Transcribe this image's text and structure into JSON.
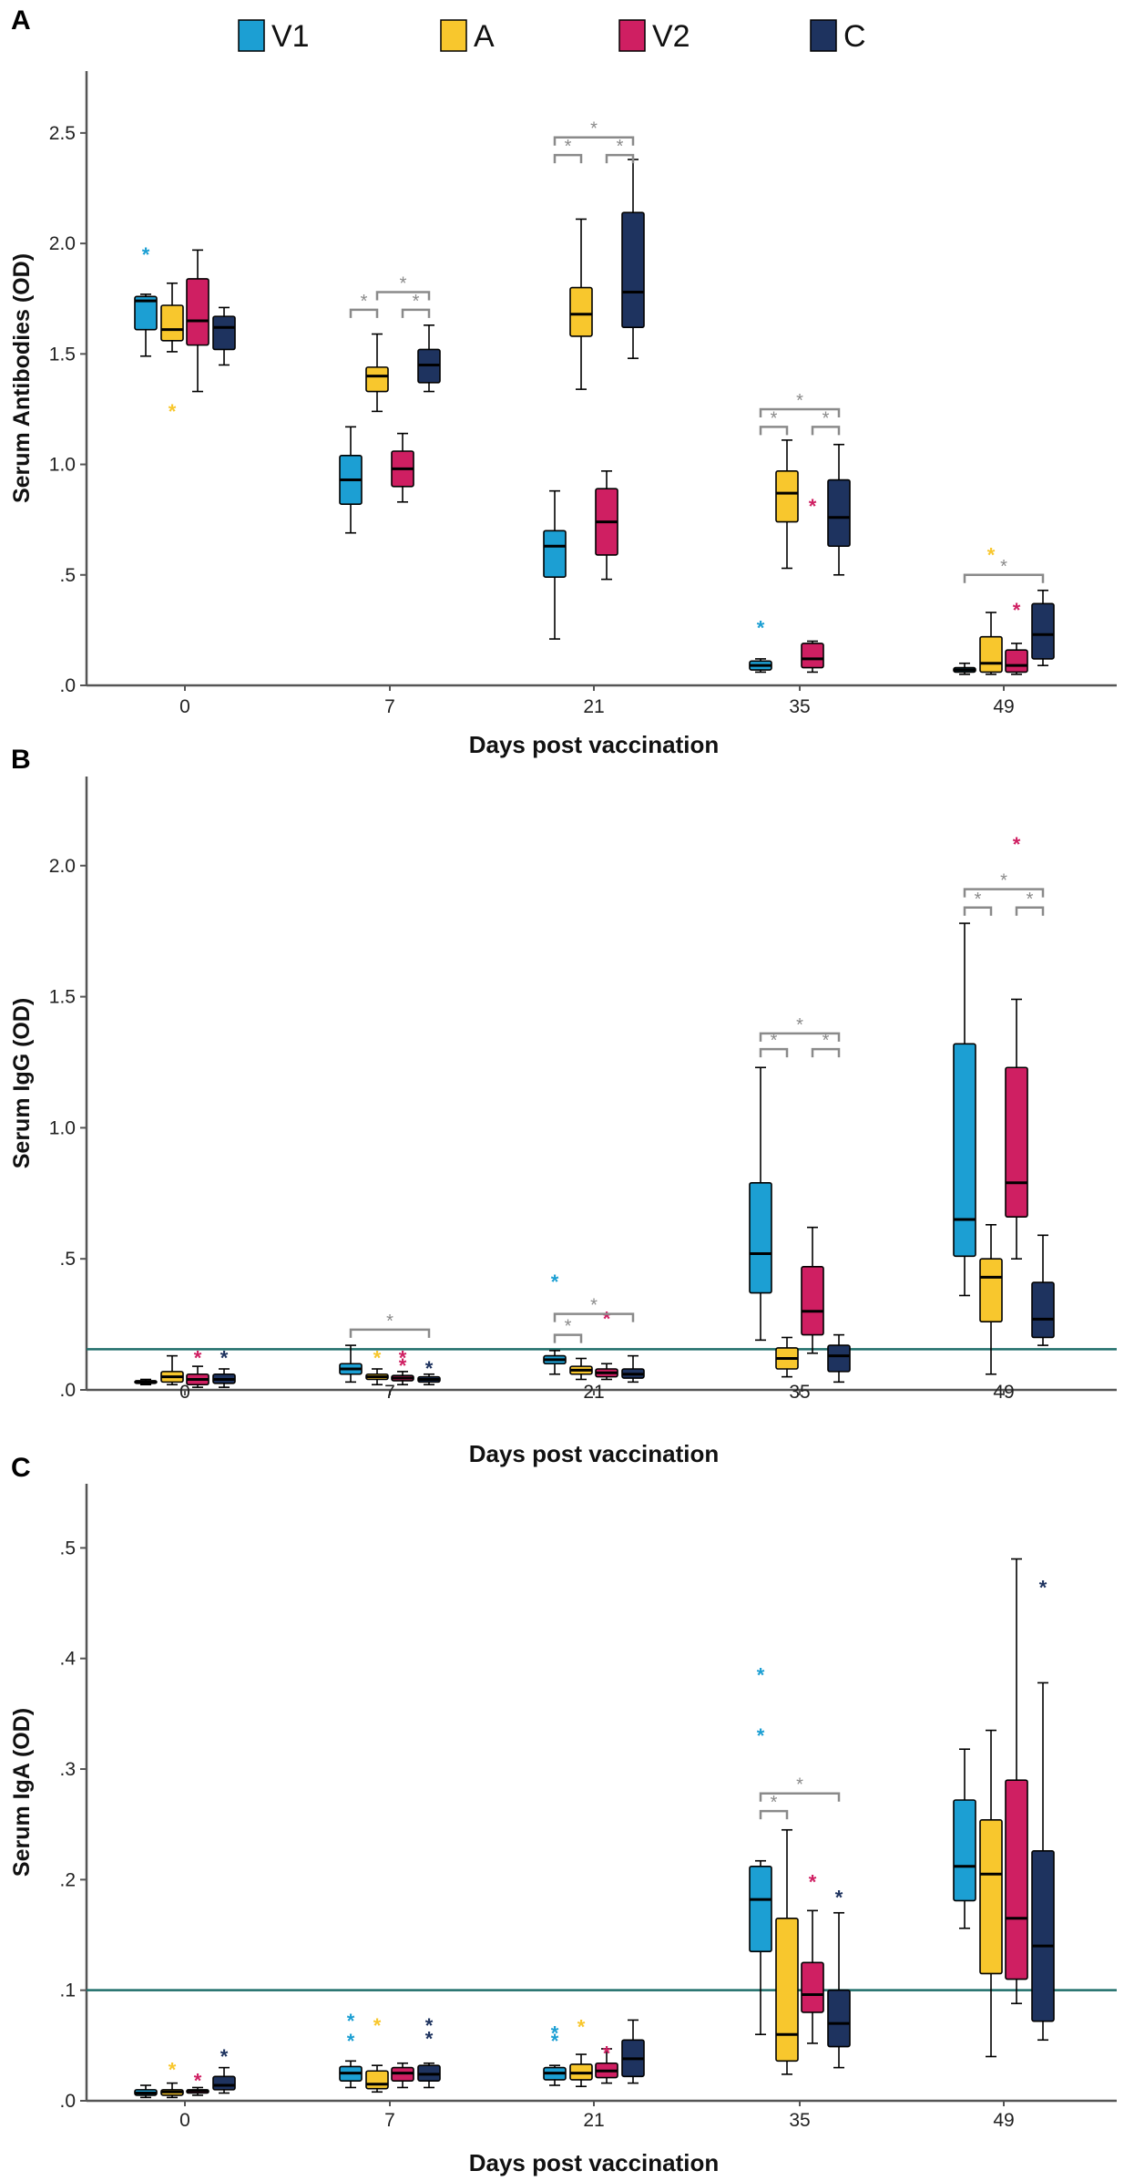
{
  "legend": [
    {
      "key": "V1",
      "color": "#1c9fd3"
    },
    {
      "key": "A",
      "color": "#f8c72d"
    },
    {
      "key": "V2",
      "color": "#cf1f62"
    },
    {
      "key": "C",
      "color": "#1e335f"
    }
  ],
  "chart_data": [
    {
      "type": "box",
      "panel": "A",
      "ylabel": "Serum Antibodies (OD)",
      "xlabel": "Days post vaccination",
      "ylim": [
        0,
        2.78
      ],
      "yticks": [
        {
          "v": 0,
          "label": ".0"
        },
        {
          "v": 0.5,
          "label": ".5"
        },
        {
          "v": 1.0,
          "label": "1.0"
        },
        {
          "v": 1.5,
          "label": "1.5"
        },
        {
          "v": 2.0,
          "label": "2.0"
        },
        {
          "v": 2.5,
          "label": "2.5"
        }
      ],
      "categories": [
        "0",
        "7",
        "21",
        "35",
        "49"
      ],
      "boxes": [
        {
          "day": "0",
          "group": "V1",
          "min": 1.49,
          "q1": 1.61,
          "median": 1.74,
          "q3": 1.76,
          "max": 1.77
        },
        {
          "day": "0",
          "group": "A",
          "min": 1.51,
          "q1": 1.56,
          "median": 1.61,
          "q3": 1.72,
          "max": 1.82
        },
        {
          "day": "0",
          "group": "V2",
          "min": 1.33,
          "q1": 1.54,
          "median": 1.65,
          "q3": 1.84,
          "max": 1.97
        },
        {
          "day": "0",
          "group": "C",
          "min": 1.45,
          "q1": 1.52,
          "median": 1.62,
          "q3": 1.67,
          "max": 1.71
        },
        {
          "day": "7",
          "group": "V1",
          "min": 0.69,
          "q1": 0.82,
          "median": 0.93,
          "q3": 1.04,
          "max": 1.17
        },
        {
          "day": "7",
          "group": "A",
          "min": 1.24,
          "q1": 1.33,
          "median": 1.4,
          "q3": 1.44,
          "max": 1.59
        },
        {
          "day": "7",
          "group": "V2",
          "min": 0.83,
          "q1": 0.9,
          "median": 0.98,
          "q3": 1.06,
          "max": 1.14
        },
        {
          "day": "7",
          "group": "C",
          "min": 1.33,
          "q1": 1.37,
          "median": 1.45,
          "q3": 1.52,
          "max": 1.63
        },
        {
          "day": "21",
          "group": "V1",
          "min": 0.21,
          "q1": 0.49,
          "median": 0.63,
          "q3": 0.7,
          "max": 0.88
        },
        {
          "day": "21",
          "group": "A",
          "min": 1.34,
          "q1": 1.58,
          "median": 1.68,
          "q3": 1.8,
          "max": 2.11
        },
        {
          "day": "21",
          "group": "V2",
          "min": 0.48,
          "q1": 0.59,
          "median": 0.74,
          "q3": 0.89,
          "max": 0.97
        },
        {
          "day": "21",
          "group": "C",
          "min": 1.48,
          "q1": 1.62,
          "median": 1.78,
          "q3": 2.14,
          "max": 2.38
        },
        {
          "day": "35",
          "group": "V1",
          "min": 0.06,
          "q1": 0.07,
          "median": 0.09,
          "q3": 0.11,
          "max": 0.12
        },
        {
          "day": "35",
          "group": "A",
          "min": 0.53,
          "q1": 0.74,
          "median": 0.87,
          "q3": 0.97,
          "max": 1.11
        },
        {
          "day": "35",
          "group": "V2",
          "min": 0.06,
          "q1": 0.08,
          "median": 0.12,
          "q3": 0.19,
          "max": 0.2
        },
        {
          "day": "35",
          "group": "C",
          "min": 0.5,
          "q1": 0.63,
          "median": 0.76,
          "q3": 0.93,
          "max": 1.09
        },
        {
          "day": "49",
          "group": "V1",
          "min": 0.05,
          "q1": 0.06,
          "median": 0.07,
          "q3": 0.08,
          "max": 0.1
        },
        {
          "day": "49",
          "group": "A",
          "min": 0.05,
          "q1": 0.06,
          "median": 0.1,
          "q3": 0.22,
          "max": 0.33
        },
        {
          "day": "49",
          "group": "V2",
          "min": 0.05,
          "q1": 0.06,
          "median": 0.09,
          "q3": 0.16,
          "max": 0.19
        },
        {
          "day": "49",
          "group": "C",
          "min": 0.09,
          "q1": 0.12,
          "median": 0.23,
          "q3": 0.37,
          "max": 0.43
        }
      ],
      "outliers": [
        {
          "day": "0",
          "group": "V1",
          "v": 1.96
        },
        {
          "day": "0",
          "group": "A",
          "v": 1.25
        },
        {
          "day": "35",
          "group": "V1",
          "v": 0.27
        },
        {
          "day": "35",
          "group": "V2",
          "v": 0.82
        },
        {
          "day": "49",
          "group": "A",
          "v": 0.6
        },
        {
          "day": "49",
          "group": "V2",
          "v": 0.35
        }
      ],
      "significance": [
        {
          "day": "7",
          "from": "A",
          "to": "C",
          "y": 1.78
        },
        {
          "day": "7",
          "from": "V1",
          "to": "A",
          "y": 1.7
        },
        {
          "day": "7",
          "from": "V2",
          "to": "C",
          "y": 1.7
        },
        {
          "day": "21",
          "from": "V1",
          "to": "C",
          "y": 2.48
        },
        {
          "day": "21",
          "from": "V1",
          "to": "A",
          "y": 2.4
        },
        {
          "day": "21",
          "from": "V2",
          "to": "C",
          "y": 2.4
        },
        {
          "day": "35",
          "from": "V1",
          "to": "C",
          "y": 1.25
        },
        {
          "day": "35",
          "from": "V1",
          "to": "A",
          "y": 1.17
        },
        {
          "day": "35",
          "from": "V2",
          "to": "C",
          "y": 1.17
        },
        {
          "day": "49",
          "from": "V1",
          "to": "C",
          "y": 0.5
        }
      ],
      "threshold": null
    },
    {
      "type": "box",
      "panel": "B",
      "ylabel": "Serum IgG (OD)",
      "xlabel": "Days post vaccination",
      "ylim": [
        0,
        2.34
      ],
      "yticks": [
        {
          "v": 0,
          "label": ".0"
        },
        {
          "v": 0.5,
          "label": ".5"
        },
        {
          "v": 1.0,
          "label": "1.0"
        },
        {
          "v": 1.5,
          "label": "1.5"
        },
        {
          "v": 2.0,
          "label": "2.0"
        }
      ],
      "categories": [
        "0",
        "7",
        "21",
        "35",
        "49"
      ],
      "boxes": [
        {
          "day": "0",
          "group": "V1",
          "min": 0.02,
          "q1": 0.025,
          "median": 0.03,
          "q3": 0.035,
          "max": 0.04
        },
        {
          "day": "0",
          "group": "A",
          "min": 0.02,
          "q1": 0.03,
          "median": 0.05,
          "q3": 0.07,
          "max": 0.13
        },
        {
          "day": "0",
          "group": "V2",
          "min": 0.01,
          "q1": 0.02,
          "median": 0.04,
          "q3": 0.06,
          "max": 0.09
        },
        {
          "day": "0",
          "group": "C",
          "min": 0.01,
          "q1": 0.025,
          "median": 0.04,
          "q3": 0.06,
          "max": 0.08
        },
        {
          "day": "7",
          "group": "V1",
          "min": 0.03,
          "q1": 0.06,
          "median": 0.08,
          "q3": 0.1,
          "max": 0.17
        },
        {
          "day": "7",
          "group": "A",
          "min": 0.02,
          "q1": 0.04,
          "median": 0.05,
          "q3": 0.06,
          "max": 0.08
        },
        {
          "day": "7",
          "group": "V2",
          "min": 0.02,
          "q1": 0.035,
          "median": 0.045,
          "q3": 0.055,
          "max": 0.07
        },
        {
          "day": "7",
          "group": "C",
          "min": 0.02,
          "q1": 0.03,
          "median": 0.04,
          "q3": 0.05,
          "max": 0.06
        },
        {
          "day": "21",
          "group": "V1",
          "min": 0.06,
          "q1": 0.1,
          "median": 0.115,
          "q3": 0.13,
          "max": 0.15
        },
        {
          "day": "21",
          "group": "A",
          "min": 0.04,
          "q1": 0.06,
          "median": 0.075,
          "q3": 0.09,
          "max": 0.12
        },
        {
          "day": "21",
          "group": "V2",
          "min": 0.04,
          "q1": 0.05,
          "median": 0.065,
          "q3": 0.08,
          "max": 0.1
        },
        {
          "day": "21",
          "group": "C",
          "min": 0.03,
          "q1": 0.045,
          "median": 0.06,
          "q3": 0.08,
          "max": 0.13
        },
        {
          "day": "35",
          "group": "V1",
          "min": 0.19,
          "q1": 0.37,
          "median": 0.52,
          "q3": 0.79,
          "max": 1.23
        },
        {
          "day": "35",
          "group": "A",
          "min": 0.05,
          "q1": 0.08,
          "median": 0.12,
          "q3": 0.16,
          "max": 0.2
        },
        {
          "day": "35",
          "group": "V2",
          "min": 0.14,
          "q1": 0.21,
          "median": 0.3,
          "q3": 0.47,
          "max": 0.62
        },
        {
          "day": "35",
          "group": "C",
          "min": 0.03,
          "q1": 0.07,
          "median": 0.13,
          "q3": 0.17,
          "max": 0.21
        },
        {
          "day": "49",
          "group": "V1",
          "min": 0.36,
          "q1": 0.51,
          "median": 0.65,
          "q3": 1.32,
          "max": 1.78
        },
        {
          "day": "49",
          "group": "A",
          "min": 0.06,
          "q1": 0.26,
          "median": 0.43,
          "q3": 0.5,
          "max": 0.63
        },
        {
          "day": "49",
          "group": "V2",
          "min": 0.5,
          "q1": 0.66,
          "median": 0.79,
          "q3": 1.23,
          "max": 1.49
        },
        {
          "day": "49",
          "group": "C",
          "min": 0.17,
          "q1": 0.2,
          "median": 0.27,
          "q3": 0.41,
          "max": 0.59
        }
      ],
      "outliers": [
        {
          "day": "0",
          "group": "V2",
          "v": 0.13
        },
        {
          "day": "0",
          "group": "C",
          "v": 0.13
        },
        {
          "day": "7",
          "group": "A",
          "v": 0.13
        },
        {
          "day": "7",
          "group": "V2",
          "v": 0.13
        },
        {
          "day": "7",
          "group": "V2",
          "v": 0.1
        },
        {
          "day": "7",
          "group": "C",
          "v": 0.09
        },
        {
          "day": "21",
          "group": "V1",
          "v": 0.42
        },
        {
          "day": "21",
          "group": "V2",
          "v": 0.28
        },
        {
          "day": "49",
          "group": "V2",
          "v": 2.09
        }
      ],
      "significance": [
        {
          "day": "7",
          "from": "V1",
          "to": "C",
          "y": 0.23
        },
        {
          "day": "21",
          "from": "V1",
          "to": "C",
          "y": 0.29
        },
        {
          "day": "21",
          "from": "V1",
          "to": "A",
          "y": 0.21
        },
        {
          "day": "35",
          "from": "V1",
          "to": "C",
          "y": 1.36
        },
        {
          "day": "35",
          "from": "V1",
          "to": "A",
          "y": 1.3
        },
        {
          "day": "35",
          "from": "V2",
          "to": "C",
          "y": 1.3
        },
        {
          "day": "49",
          "from": "V1",
          "to": "C",
          "y": 1.91
        },
        {
          "day": "49",
          "from": "V1",
          "to": "A",
          "y": 1.84
        },
        {
          "day": "49",
          "from": "V2",
          "to": "C",
          "y": 1.84
        }
      ],
      "threshold": 0.155
    },
    {
      "type": "box",
      "panel": "C",
      "ylabel": "Serum IgA (OD)",
      "xlabel": "Days post vaccination",
      "ylim": [
        0,
        0.558
      ],
      "yticks": [
        {
          "v": 0,
          "label": ".0"
        },
        {
          "v": 0.1,
          "label": ".1"
        },
        {
          "v": 0.2,
          "label": ".2"
        },
        {
          "v": 0.3,
          "label": ".3"
        },
        {
          "v": 0.4,
          "label": ".4"
        },
        {
          "v": 0.5,
          "label": ".5"
        }
      ],
      "categories": [
        "0",
        "7",
        "21",
        "35",
        "49"
      ],
      "boxes": [
        {
          "day": "0",
          "group": "V1",
          "min": 0.003,
          "q1": 0.005,
          "median": 0.007,
          "q3": 0.01,
          "max": 0.014
        },
        {
          "day": "0",
          "group": "A",
          "min": 0.003,
          "q1": 0.005,
          "median": 0.008,
          "q3": 0.01,
          "max": 0.016
        },
        {
          "day": "0",
          "group": "V2",
          "min": 0.005,
          "q1": 0.007,
          "median": 0.009,
          "q3": 0.01,
          "max": 0.012
        },
        {
          "day": "0",
          "group": "C",
          "min": 0.007,
          "q1": 0.01,
          "median": 0.014,
          "q3": 0.022,
          "max": 0.03
        },
        {
          "day": "7",
          "group": "V1",
          "min": 0.012,
          "q1": 0.018,
          "median": 0.025,
          "q3": 0.031,
          "max": 0.036
        },
        {
          "day": "7",
          "group": "A",
          "min": 0.008,
          "q1": 0.011,
          "median": 0.015,
          "q3": 0.027,
          "max": 0.032
        },
        {
          "day": "7",
          "group": "V2",
          "min": 0.012,
          "q1": 0.018,
          "median": 0.025,
          "q3": 0.03,
          "max": 0.034
        },
        {
          "day": "7",
          "group": "C",
          "min": 0.012,
          "q1": 0.018,
          "median": 0.024,
          "q3": 0.032,
          "max": 0.034
        },
        {
          "day": "21",
          "group": "V1",
          "min": 0.014,
          "q1": 0.019,
          "median": 0.025,
          "q3": 0.03,
          "max": 0.032
        },
        {
          "day": "21",
          "group": "A",
          "min": 0.013,
          "q1": 0.019,
          "median": 0.025,
          "q3": 0.033,
          "max": 0.042
        },
        {
          "day": "21",
          "group": "V2",
          "min": 0.016,
          "q1": 0.021,
          "median": 0.027,
          "q3": 0.034,
          "max": 0.047
        },
        {
          "day": "21",
          "group": "C",
          "min": 0.016,
          "q1": 0.022,
          "median": 0.038,
          "q3": 0.055,
          "max": 0.073
        },
        {
          "day": "35",
          "group": "V1",
          "min": 0.06,
          "q1": 0.135,
          "median": 0.182,
          "q3": 0.212,
          "max": 0.217
        },
        {
          "day": "35",
          "group": "A",
          "min": 0.024,
          "q1": 0.036,
          "median": 0.06,
          "q3": 0.165,
          "max": 0.245
        },
        {
          "day": "35",
          "group": "V2",
          "min": 0.052,
          "q1": 0.08,
          "median": 0.096,
          "q3": 0.125,
          "max": 0.172
        },
        {
          "day": "35",
          "group": "C",
          "min": 0.03,
          "q1": 0.049,
          "median": 0.07,
          "q3": 0.1,
          "max": 0.17
        },
        {
          "day": "49",
          "group": "V1",
          "min": 0.156,
          "q1": 0.181,
          "median": 0.212,
          "q3": 0.272,
          "max": 0.318
        },
        {
          "day": "49",
          "group": "A",
          "min": 0.04,
          "q1": 0.115,
          "median": 0.205,
          "q3": 0.254,
          "max": 0.335
        },
        {
          "day": "49",
          "group": "V2",
          "min": 0.088,
          "q1": 0.11,
          "median": 0.165,
          "q3": 0.29,
          "max": 0.49
        },
        {
          "day": "49",
          "group": "C",
          "min": 0.055,
          "q1": 0.072,
          "median": 0.14,
          "q3": 0.226,
          "max": 0.378
        }
      ],
      "outliers": [
        {
          "day": "0",
          "group": "A",
          "v": 0.03
        },
        {
          "day": "0",
          "group": "V2",
          "v": 0.02
        },
        {
          "day": "0",
          "group": "C",
          "v": 0.042
        },
        {
          "day": "7",
          "group": "V1",
          "v": 0.074
        },
        {
          "day": "7",
          "group": "V1",
          "v": 0.056
        },
        {
          "day": "7",
          "group": "A",
          "v": 0.07
        },
        {
          "day": "7",
          "group": "C",
          "v": 0.07
        },
        {
          "day": "7",
          "group": "C",
          "v": 0.058
        },
        {
          "day": "21",
          "group": "V1",
          "v": 0.063
        },
        {
          "day": "21",
          "group": "V1",
          "v": 0.056
        },
        {
          "day": "21",
          "group": "A",
          "v": 0.069
        },
        {
          "day": "21",
          "group": "V2",
          "v": 0.045
        },
        {
          "day": "35",
          "group": "V1",
          "v": 0.387
        },
        {
          "day": "35",
          "group": "V1",
          "v": 0.332
        },
        {
          "day": "35",
          "group": "V2",
          "v": 0.2
        },
        {
          "day": "35",
          "group": "C",
          "v": 0.186
        },
        {
          "day": "49",
          "group": "C",
          "v": 0.466
        }
      ],
      "significance": [
        {
          "day": "35",
          "from": "V1",
          "to": "C",
          "y": 0.278
        },
        {
          "day": "35",
          "from": "V1",
          "to": "A",
          "y": 0.262
        }
      ],
      "threshold": 0.1
    }
  ],
  "significance_symbol": "*",
  "outlier_symbol": "*"
}
